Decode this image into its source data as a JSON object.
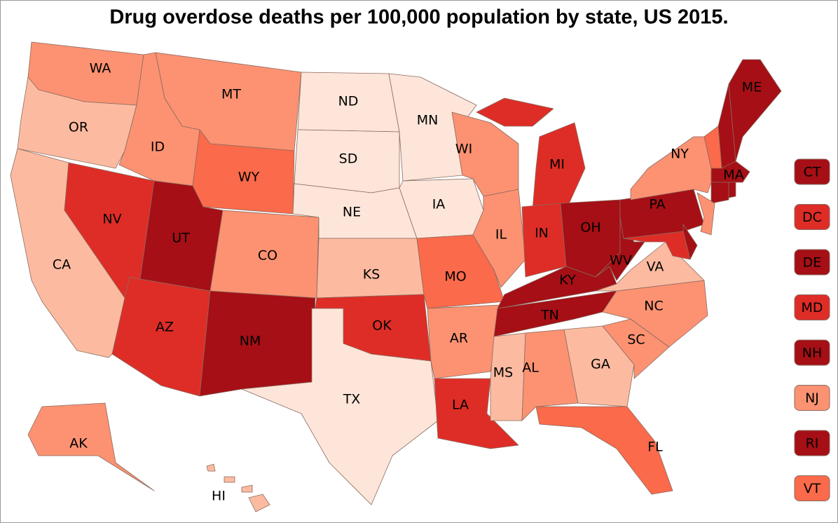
{
  "title": "Drug overdose deaths per 100,000 population by state, US 2015.",
  "states": [
    {
      "label": "WA",
      "color": "#fc9272"
    },
    {
      "label": "OR",
      "color": "#fcbba1"
    },
    {
      "label": "CA",
      "color": "#fcbba1"
    },
    {
      "label": "NV",
      "color": "#de2d26"
    },
    {
      "label": "ID",
      "color": "#fc9272"
    },
    {
      "label": "MT",
      "color": "#fc9272"
    },
    {
      "label": "WY",
      "color": "#fb6a4a"
    },
    {
      "label": "UT",
      "color": "#a50f15"
    },
    {
      "label": "CO",
      "color": "#fc9272"
    },
    {
      "label": "AZ",
      "color": "#de2d26"
    },
    {
      "label": "NM",
      "color": "#a50f15"
    },
    {
      "label": "ND",
      "color": "#fee5d9"
    },
    {
      "label": "SD",
      "color": "#fee5d9"
    },
    {
      "label": "NE",
      "color": "#fee5d9"
    },
    {
      "label": "KS",
      "color": "#fcbba1"
    },
    {
      "label": "OK",
      "color": "#de2d26"
    },
    {
      "label": "TX",
      "color": "#fee5d9"
    },
    {
      "label": "MN",
      "color": "#fee5d9"
    },
    {
      "label": "IA",
      "color": "#fee5d9"
    },
    {
      "label": "MO",
      "color": "#fb6a4a"
    },
    {
      "label": "AR",
      "color": "#fc9272"
    },
    {
      "label": "LA",
      "color": "#de2d26"
    },
    {
      "label": "WI",
      "color": "#fc9272"
    },
    {
      "label": "IL",
      "color": "#fc9272"
    },
    {
      "label": "MI",
      "color": "#de2d26"
    },
    {
      "label": "IN",
      "color": "#de2d26"
    },
    {
      "label": "OH",
      "color": "#a50f15"
    },
    {
      "label": "KY",
      "color": "#a50f15"
    },
    {
      "label": "TN",
      "color": "#a50f15"
    },
    {
      "label": "MS",
      "color": "#fcbba1"
    },
    {
      "label": "AL",
      "color": "#fc9272"
    },
    {
      "label": "GA",
      "color": "#fcbba1"
    },
    {
      "label": "FL",
      "color": "#fb6a4a"
    },
    {
      "label": "SC",
      "color": "#fc9272"
    },
    {
      "label": "NC",
      "color": "#fc9272"
    },
    {
      "label": "VA",
      "color": "#fcbba1"
    },
    {
      "label": "WV",
      "color": "#a50f15"
    },
    {
      "label": "PA",
      "color": "#a50f15"
    },
    {
      "label": "NY",
      "color": "#fc9272"
    },
    {
      "label": "ME",
      "color": "#a50f15"
    },
    {
      "label": "MA",
      "color": "#a50f15"
    },
    {
      "label": "AK",
      "color": "#fc9272"
    },
    {
      "label": "HI",
      "color": "#fcbba1"
    }
  ],
  "boxed_states": [
    {
      "label": "CT",
      "color": "#a50f15"
    },
    {
      "label": "DC",
      "color": "#de2d26"
    },
    {
      "label": "DE",
      "color": "#a50f15"
    },
    {
      "label": "MD",
      "color": "#de2d26"
    },
    {
      "label": "NH",
      "color": "#a50f15"
    },
    {
      "label": "NJ",
      "color": "#fc9272"
    },
    {
      "label": "RI",
      "color": "#a50f15"
    },
    {
      "label": "VT",
      "color": "#fb6a4a"
    }
  ]
}
